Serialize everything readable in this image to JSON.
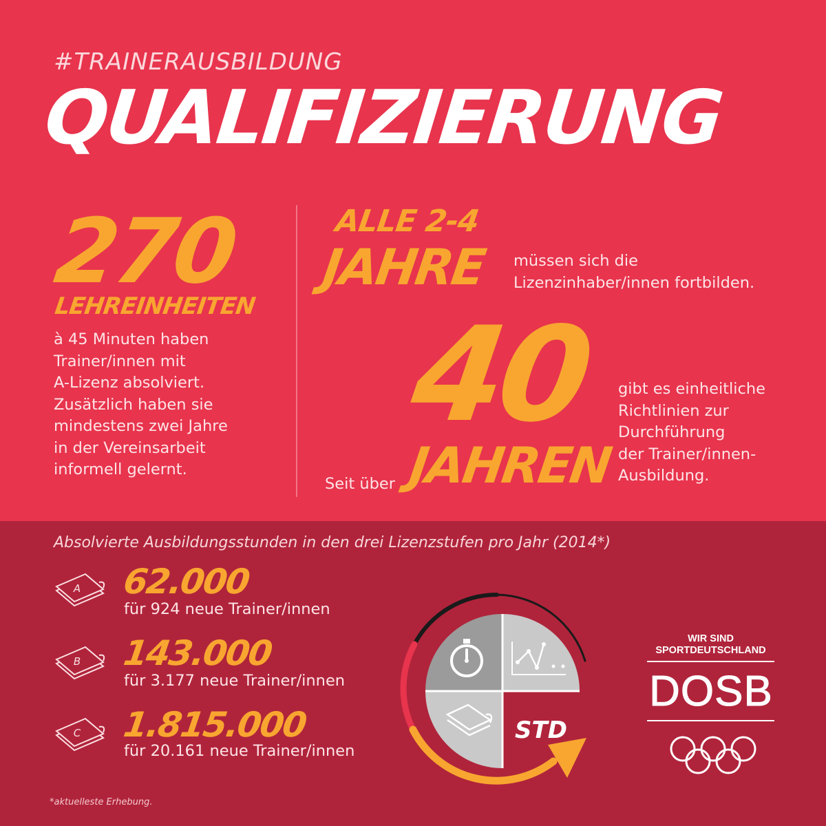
{
  "hashtag": "#TRAINERAUSBILDUNG",
  "headline": "QUALIFIZIERUNG",
  "left_block": {
    "number": "270",
    "unit": "LEHREINHEITEN",
    "lines": [
      "à 45 Minuten haben",
      "Trainer/innen mit",
      "A-Lizenz absolviert.",
      "Zusätzlich haben sie",
      "mindestens zwei Jahre",
      "in der Vereinsarbeit",
      "informell gelernt."
    ]
  },
  "right_top": {
    "line1": "ALLE 2-4",
    "line2": "JAHRE",
    "text_lines": [
      "müssen sich die",
      "Lizenzinhaber/innen fortbilden."
    ]
  },
  "right_bottom": {
    "prefix": "Seit über",
    "number": "40",
    "unit": "JAHREN",
    "text_lines": [
      "gibt es einheitliche",
      "Richtlinien zur",
      "Durchführung",
      "der Trainer/innen-",
      "Ausbildung."
    ]
  },
  "bottom": {
    "caption": "Absolvierte Ausbildungsstunden in den drei Lizenzstufen pro Jahr (2014*)",
    "licenses": [
      {
        "letter": "A",
        "value": "62.000",
        "sub": "für 924 neue Trainer/innen"
      },
      {
        "letter": "B",
        "value": "143.000",
        "sub": "für 3.177 neue Trainer/innen"
      },
      {
        "letter": "C",
        "value": "1.815.000",
        "sub": "für 20.161 neue Trainer/innen"
      }
    ],
    "clock_label": "STD",
    "clock_icons": [
      "stopwatch-icon",
      "line-graph-icon",
      "book-icon"
    ],
    "footnote": "*aktuelleste Erhebung."
  },
  "logo": {
    "tagline_1": "WIR SIND",
    "tagline_2": "SPORTDEUTSCHLAND",
    "name": "DOSB"
  },
  "colors": {
    "top_bg": "#e8344d",
    "bottom_bg": "#b0243b",
    "accent": "#f8a630"
  }
}
